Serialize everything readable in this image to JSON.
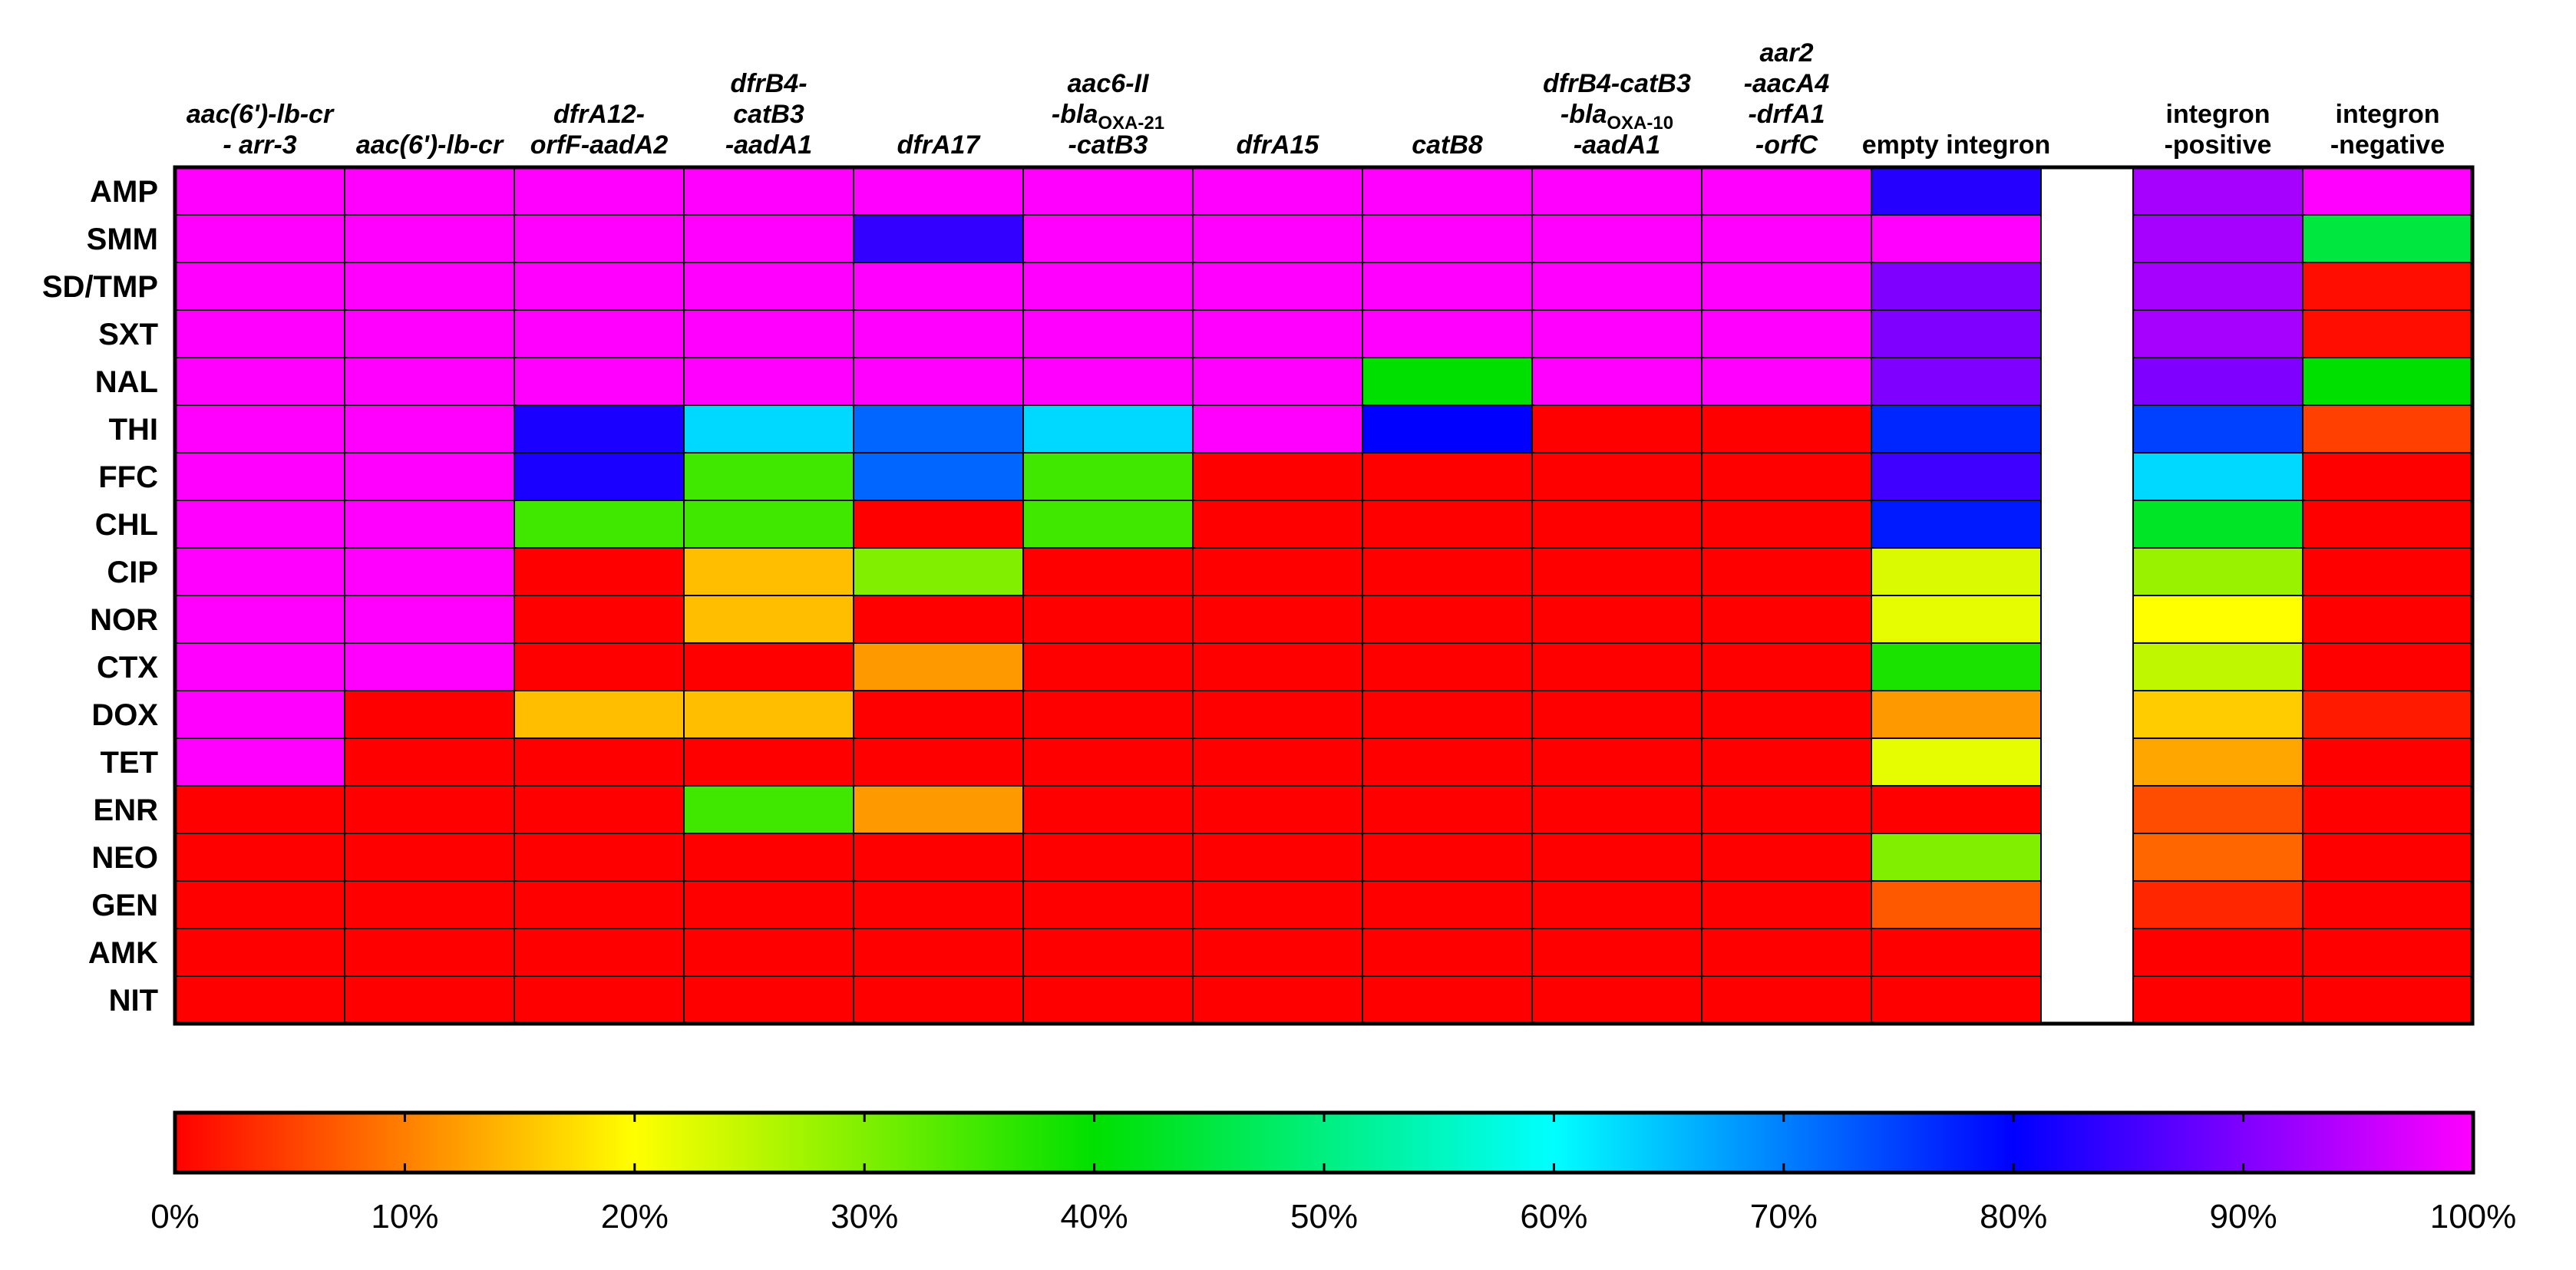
{
  "chart_data": {
    "type": "heatmap",
    "value_unit": "%",
    "color_scale": {
      "min": 0,
      "max": 100,
      "stops": [
        {
          "value": 0,
          "color": "#ff0000"
        },
        {
          "value": 20,
          "color": "#ffff00"
        },
        {
          "value": 40,
          "color": "#00e000"
        },
        {
          "value": 60,
          "color": "#00ffff"
        },
        {
          "value": 80,
          "color": "#0000ff"
        },
        {
          "value": 100,
          "color": "#ff00ff"
        }
      ]
    },
    "colorbar": {
      "ticks": [
        0,
        10,
        20,
        30,
        40,
        50,
        60,
        70,
        80,
        90,
        100
      ],
      "tick_labels": [
        "0%",
        "10%",
        "20%",
        "30%",
        "40%",
        "50%",
        "60%",
        "70%",
        "80%",
        "90%",
        "100%"
      ]
    },
    "rows": [
      "AMP",
      "SMM",
      "SD/TMP",
      "SXT",
      "NAL",
      "THI",
      "FFC",
      "CHL",
      "CIP",
      "NOR",
      "CTX",
      "DOX",
      "TET",
      "ENR",
      "NEO",
      "GEN",
      "AMK",
      "NIT"
    ],
    "columns": [
      {
        "key": "c1",
        "label_lines": [
          {
            "parts": [
              {
                "text": "aac(6')-lb-cr"
              }
            ]
          },
          {
            "parts": [
              {
                "text": "- arr-3"
              }
            ]
          }
        ],
        "italic": true
      },
      {
        "key": "c2",
        "label_lines": [
          {
            "parts": [
              {
                "text": "aac(6')-lb-cr"
              }
            ]
          }
        ],
        "italic": true
      },
      {
        "key": "c3",
        "label_lines": [
          {
            "parts": [
              {
                "text": "dfrA12-"
              }
            ]
          },
          {
            "parts": [
              {
                "text": "orfF-aadA2"
              }
            ]
          }
        ],
        "italic": true
      },
      {
        "key": "c4",
        "label_lines": [
          {
            "parts": [
              {
                "text": "dfrB4-"
              }
            ]
          },
          {
            "parts": [
              {
                "text": "catB3"
              }
            ]
          },
          {
            "parts": [
              {
                "text": "-aadA1"
              }
            ]
          }
        ],
        "italic": true
      },
      {
        "key": "c5",
        "label_lines": [
          {
            "parts": [
              {
                "text": "dfrA17"
              }
            ]
          }
        ],
        "italic": true
      },
      {
        "key": "c6",
        "label_lines": [
          {
            "parts": [
              {
                "text": "aac6-II"
              }
            ]
          },
          {
            "parts": [
              {
                "text": "-bla"
              },
              {
                "text": "OXA-21",
                "sub": true
              }
            ]
          },
          {
            "parts": [
              {
                "text": "-catB3"
              }
            ]
          }
        ],
        "italic": true
      },
      {
        "key": "c7",
        "label_lines": [
          {
            "parts": [
              {
                "text": "dfrA15"
              }
            ]
          }
        ],
        "italic": true
      },
      {
        "key": "c8",
        "label_lines": [
          {
            "parts": [
              {
                "text": "catB8"
              }
            ]
          }
        ],
        "italic": true
      },
      {
        "key": "c9",
        "label_lines": [
          {
            "parts": [
              {
                "text": "dfrB4-catB3"
              }
            ]
          },
          {
            "parts": [
              {
                "text": "-bla"
              },
              {
                "text": "OXA-10",
                "sub": true
              }
            ]
          },
          {
            "parts": [
              {
                "text": "-aadA1"
              }
            ]
          }
        ],
        "italic": true
      },
      {
        "key": "c10",
        "label_lines": [
          {
            "parts": [
              {
                "text": "aar2"
              }
            ]
          },
          {
            "parts": [
              {
                "text": "-aacA4"
              }
            ]
          },
          {
            "parts": [
              {
                "text": "-drfA1"
              }
            ]
          },
          {
            "parts": [
              {
                "text": "-orfC"
              }
            ]
          }
        ],
        "italic": true
      },
      {
        "key": "c11",
        "label_lines": [
          {
            "parts": [
              {
                "text": "empty integron"
              }
            ]
          }
        ],
        "italic": false
      },
      {
        "key": "gap",
        "spacer": true,
        "label_lines": []
      },
      {
        "key": "c12",
        "label_lines": [
          {
            "parts": [
              {
                "text": "integron"
              }
            ]
          },
          {
            "parts": [
              {
                "text": "-positive"
              }
            ]
          }
        ],
        "italic": false
      },
      {
        "key": "c13",
        "label_lines": [
          {
            "parts": [
              {
                "text": "integron"
              }
            ]
          },
          {
            "parts": [
              {
                "text": "-negative"
              }
            ]
          }
        ],
        "italic": false
      }
    ],
    "values": [
      [
        100,
        100,
        100,
        100,
        100,
        100,
        100,
        100,
        100,
        100,
        83,
        null,
        93,
        100
      ],
      [
        100,
        100,
        100,
        100,
        84,
        100,
        100,
        100,
        100,
        100,
        100,
        null,
        93,
        45
      ],
      [
        100,
        100,
        100,
        100,
        100,
        100,
        100,
        100,
        100,
        100,
        90,
        null,
        93,
        1
      ],
      [
        100,
        100,
        100,
        100,
        100,
        100,
        100,
        100,
        100,
        100,
        90,
        null,
        93,
        1
      ],
      [
        100,
        100,
        100,
        100,
        100,
        100,
        100,
        40,
        100,
        100,
        90,
        null,
        90,
        40
      ],
      [
        100,
        100,
        82,
        63,
        72,
        63,
        100,
        80,
        0,
        0,
        77,
        null,
        75,
        5
      ],
      [
        100,
        100,
        82,
        35,
        72,
        35,
        0,
        0,
        0,
        0,
        85,
        null,
        63,
        0
      ],
      [
        100,
        100,
        35,
        35,
        0,
        35,
        0,
        0,
        0,
        0,
        78,
        null,
        43,
        0
      ],
      [
        100,
        100,
        0,
        15,
        30,
        0,
        0,
        0,
        0,
        0,
        23,
        null,
        28,
        0
      ],
      [
        100,
        100,
        0,
        15,
        0,
        0,
        0,
        0,
        0,
        0,
        22,
        null,
        20,
        0
      ],
      [
        100,
        100,
        0,
        0,
        12,
        0,
        0,
        0,
        0,
        0,
        38,
        null,
        25,
        0
      ],
      [
        100,
        0,
        15,
        15,
        0,
        0,
        0,
        0,
        0,
        0,
        12,
        null,
        16,
        2
      ],
      [
        100,
        0,
        0,
        0,
        0,
        0,
        0,
        0,
        0,
        0,
        22,
        null,
        13,
        0
      ],
      [
        0,
        0,
        0,
        35,
        12,
        0,
        0,
        0,
        0,
        0,
        0,
        null,
        6,
        0
      ],
      [
        0,
        0,
        0,
        0,
        0,
        0,
        0,
        0,
        0,
        0,
        30,
        null,
        8,
        0
      ],
      [
        0,
        0,
        0,
        0,
        0,
        0,
        0,
        0,
        0,
        0,
        7,
        null,
        3,
        0
      ],
      [
        0,
        0,
        0,
        0,
        0,
        0,
        0,
        0,
        0,
        0,
        0,
        null,
        0,
        0
      ],
      [
        0,
        0,
        0,
        0,
        0,
        0,
        0,
        0,
        0,
        0,
        0,
        null,
        0,
        0
      ]
    ]
  }
}
